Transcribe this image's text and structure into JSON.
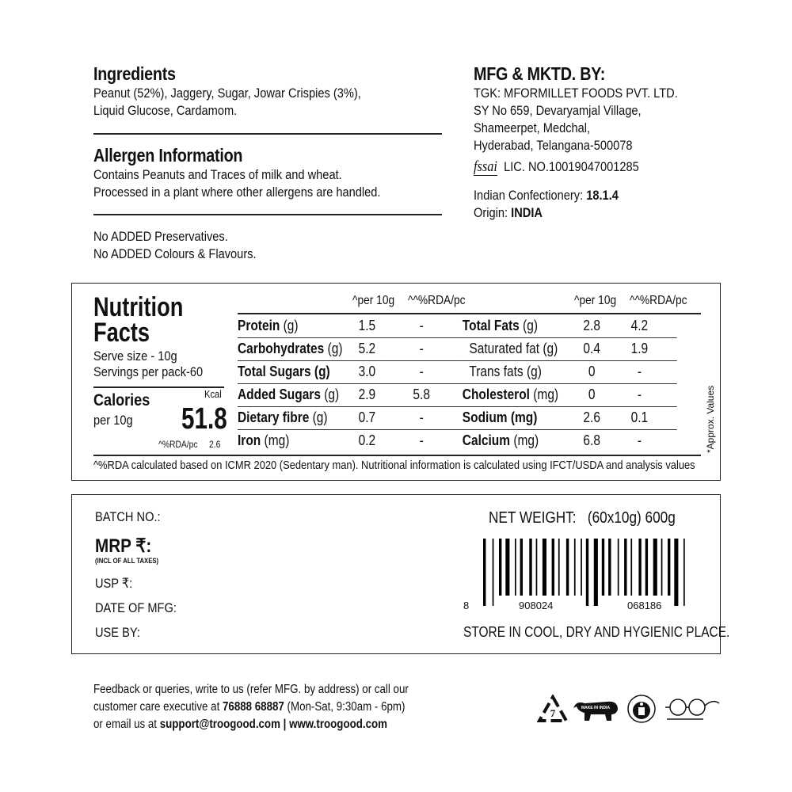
{
  "ingredients": {
    "heading": "Ingredients",
    "lines": [
      "Peanut (52%), Jaggery, Sugar, Jowar Crispies (3%),",
      "Liquid Glucose, Cardamom."
    ]
  },
  "allergen": {
    "heading": "Allergen Information",
    "lines": [
      "Contains Peanuts and Traces of milk and wheat.",
      "Processed in a plant where other allergens are handled."
    ]
  },
  "claims": [
    "No ADDED Preservatives.",
    "No ADDED Colours & Flavours."
  ],
  "manufacturer": {
    "heading": "MFG & MKTD. BY:",
    "lines": [
      "TGK: MFORMILLET FOODS PVT. LTD.",
      "SY No 659, Devaryamjal Village,",
      "Shameerpet, Medchal,",
      "Hyderabad, Telangana-500078"
    ],
    "fssai_logo": "fssai",
    "license": "LIC. NO.10019047001285",
    "category_label": "Indian Confectionery:",
    "category_value": "18.1.4",
    "origin_label": "Origin:",
    "origin_value": "INDIA"
  },
  "nutrition": {
    "title1": "Nutrition",
    "title2": "Facts",
    "serve_size": "Serve size - 10g",
    "servings": "Servings per pack-60",
    "calories_label": "Calories",
    "calories_unit": "Kcal",
    "calories_per": "per 10g",
    "calories_value": "51.8",
    "calories_rda_label": "^%RDA/pc",
    "calories_rda": "2.6",
    "col_per": "^per 10g",
    "col_rda": "^^%RDA/pc",
    "rows": [
      {
        "l": "Protein",
        "lu": " (g)",
        "lb": true,
        "lv": "1.5",
        "lr": "-",
        "r": "Total Fats",
        "ru": " (g)",
        "rb": true,
        "rv": "2.8",
        "rr": "4.2"
      },
      {
        "l": "Carbohydrates",
        "lu": " (g)",
        "lb": true,
        "lv": "5.2",
        "lr": "-",
        "r": "Saturated fat (g)",
        "ru": "",
        "rb": false,
        "rv": "0.4",
        "rr": "1.9"
      },
      {
        "l": "Total Sugars (g)",
        "lu": "",
        "lb": true,
        "lv": "3.0",
        "lr": "-",
        "r": "Trans fats (g)",
        "ru": "",
        "rb": false,
        "rv": "0",
        "rr": "-"
      },
      {
        "l": "Added Sugars",
        "lu": " (g)",
        "lb": true,
        "lv": "2.9",
        "lr": "5.8",
        "r": "Cholesterol",
        "ru": " (mg)",
        "rb": true,
        "rv": "0",
        "rr": "-"
      },
      {
        "l": "Dietary fibre",
        "lu": " (g)",
        "lb": true,
        "lv": "0.7",
        "lr": "-",
        "r": "Sodium (mg)",
        "ru": "",
        "rb": true,
        "rv": "2.6",
        "rr": "0.1"
      },
      {
        "l": "Iron",
        "lu": " (mg)",
        "lb": true,
        "lv": "0.2",
        "lr": "-",
        "r": "Calcium",
        "ru": " (mg)",
        "rb": true,
        "rv": "6.8",
        "rr": "-"
      }
    ],
    "side_note": "*Approx. Values",
    "footnote": "^%RDA calculated based on ICMR 2020 (Sedentary man). Nutritional information is calculated using IFCT/USDA and analysis values"
  },
  "pack": {
    "batch": "BATCH NO.:",
    "mrp": "MRP ₹:",
    "mrp_note": "(INCL OF ALL TAXES)",
    "usp": "USP ₹:",
    "mfg_date": "DATE OF MFG:",
    "use_by": "USE BY:",
    "net_weight_label": "NET WEIGHT:",
    "net_weight_value": "(60x10g) 600g",
    "barcode": [
      "8",
      "908024",
      "068186"
    ],
    "storage": "STORE IN COOL, DRY AND HYGIENIC PLACE."
  },
  "contact": {
    "lines": [
      "Feedback or queries, write to us (refer MFG. by address) or call our",
      "customer care executive at ",
      " (Mon-Sat, 9:30am - 6pm)",
      "or email us at ",
      " | "
    ],
    "phone": "76888 68887",
    "email": "support@troogood.com",
    "website": "www.troogood.com"
  },
  "logos": {
    "recycle": "7",
    "make_in_india": "MAKE IN INDIA",
    "keep_clean": "KEEP YOUR CITY CLEAN",
    "swachh": "स्वच्छ भारत"
  }
}
